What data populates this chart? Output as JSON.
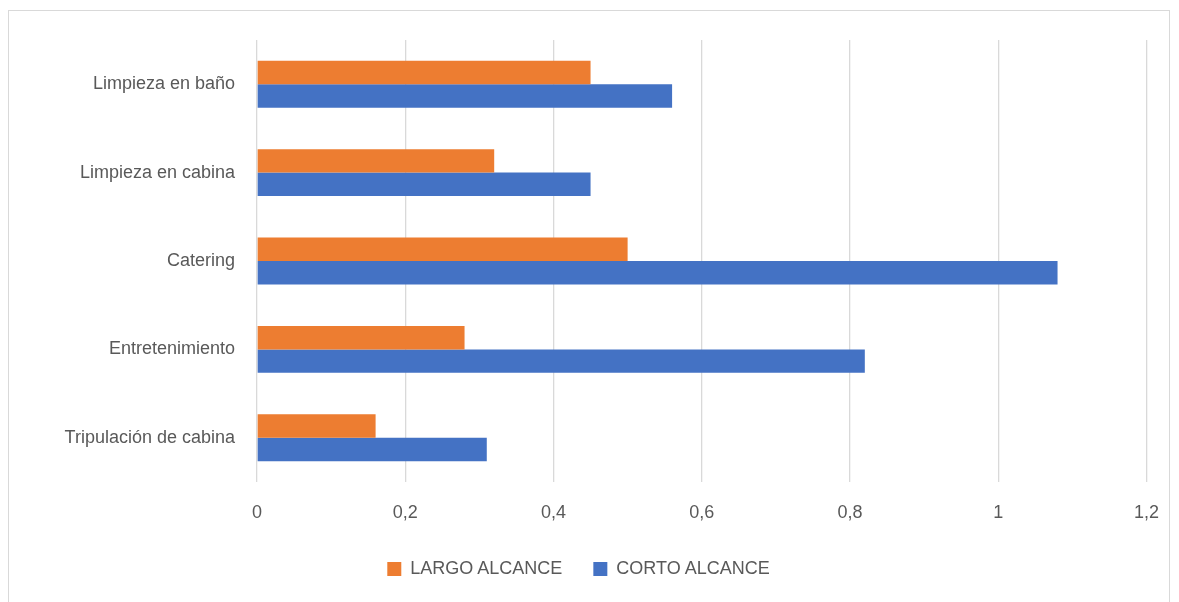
{
  "chart_data": {
    "type": "bar",
    "orientation": "horizontal",
    "categories": [
      "Limpieza en baño",
      "Limpieza en cabina",
      "Catering",
      "Entretenimiento",
      "Tripulación de cabina"
    ],
    "series": [
      {
        "name": "LARGO ALCANCE",
        "color": "#ed7d31",
        "values": [
          0.45,
          0.32,
          0.5,
          0.28,
          0.16
        ]
      },
      {
        "name": "CORTO ALCANCE",
        "color": "#4472c4",
        "values": [
          0.56,
          0.45,
          1.08,
          0.82,
          0.31
        ]
      }
    ],
    "xlim": [
      0,
      1.2
    ],
    "xticks": [
      0,
      {
        "value": 0.2,
        "label": "0,2"
      },
      {
        "value": 0.4,
        "label": "0,4"
      },
      {
        "value": 0.6,
        "label": "0,6"
      },
      {
        "value": 0.8,
        "label": "0,8"
      },
      1,
      {
        "value": 1.2,
        "label": "1,2"
      }
    ],
    "grid": "x",
    "legend": "bottom"
  }
}
